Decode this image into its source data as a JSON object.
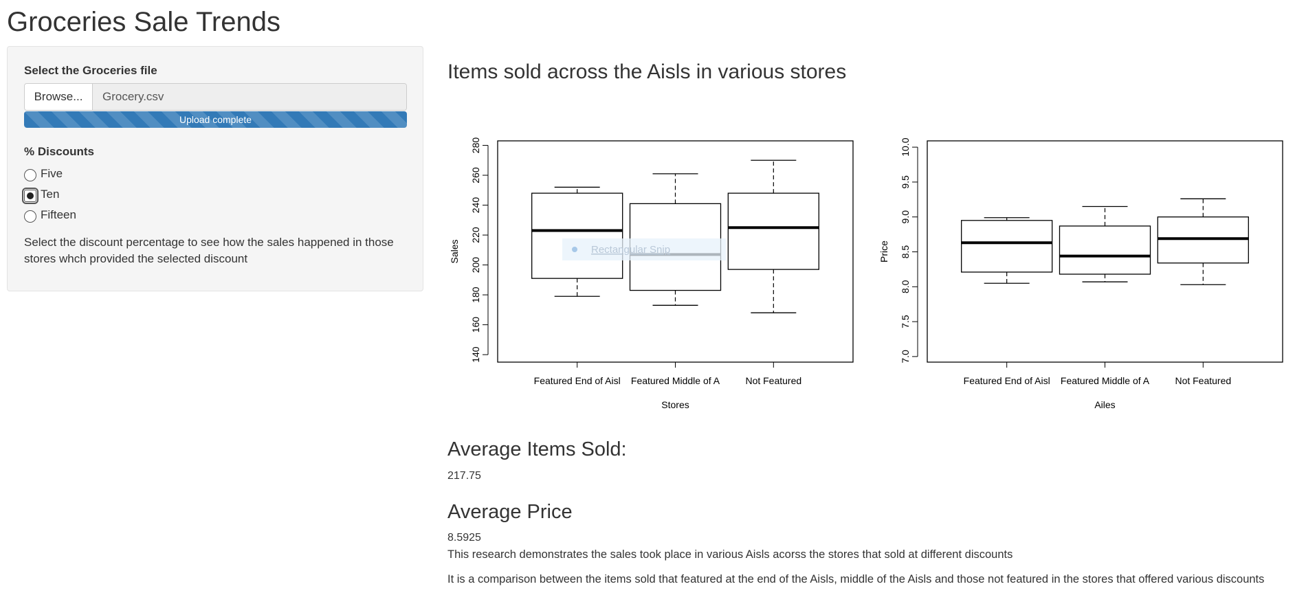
{
  "app": {
    "title": "Groceries Sale Trends"
  },
  "sidebar": {
    "file_input": {
      "label": "Select the Groceries file",
      "browse_label": "Browse...",
      "file_name": "Grocery.csv",
      "progress_text": "Upload complete",
      "progress": 1.0
    },
    "discount": {
      "label": "% Discounts",
      "options": [
        {
          "label": "Five",
          "selected": false
        },
        {
          "label": "Ten",
          "selected": true
        },
        {
          "label": "Fifteen",
          "selected": false
        }
      ]
    },
    "help_text": "Select the discount percentage to see how the sales happened in those stores whch provided the selected discount"
  },
  "main": {
    "plot_heading": "Items sold across the Aisls in various stores",
    "tooltip_text": "Rectangular Snip",
    "average_items": {
      "heading": "Average Items Sold:",
      "value": "217.75"
    },
    "average_price": {
      "heading": "Average Price",
      "value": "8.5925"
    },
    "research": [
      "This research demonstrates the sales took place in various Aisls acorss the stores that sold at different discounts",
      "It is a comparison between the items sold that featured at the end of the Aisls, middle of the Aisls and those not featured in the stores that offered various discounts"
    ]
  },
  "chart_data": [
    {
      "type": "boxplot",
      "xlabel": "Stores",
      "ylabel": "Sales",
      "ylim": [
        135,
        283
      ],
      "yticks": [
        "140",
        "160",
        "180",
        "200",
        "220",
        "240",
        "260",
        "280"
      ],
      "categories": [
        "Featured End of Aisl",
        "Featured Middle of A",
        "Not Featured"
      ],
      "boxes": [
        {
          "min": 179,
          "q1": 191,
          "median": 223,
          "q3": 248,
          "max": 252
        },
        {
          "min": 173,
          "q1": 183,
          "median": 207,
          "q3": 241,
          "max": 261
        },
        {
          "min": 168,
          "q1": 197,
          "median": 225,
          "q3": 248,
          "max": 270
        }
      ]
    },
    {
      "type": "boxplot",
      "xlabel": "Ailes",
      "ylabel": "Price",
      "ylim": [
        6.92,
        10.09
      ],
      "yticks": [
        "7.0",
        "7.5",
        "8.0",
        "8.5",
        "9.0",
        "9.5",
        "10.0"
      ],
      "categories": [
        "Featured End of Aisl",
        "Featured Middle of A",
        "Not Featured"
      ],
      "boxes": [
        {
          "min": 8.05,
          "q1": 8.21,
          "median": 8.63,
          "q3": 8.95,
          "max": 8.99
        },
        {
          "min": 8.07,
          "q1": 8.18,
          "median": 8.44,
          "q3": 8.87,
          "max": 9.15
        },
        {
          "min": 8.03,
          "q1": 8.34,
          "median": 8.69,
          "q3": 9.0,
          "max": 9.26
        }
      ]
    }
  ]
}
